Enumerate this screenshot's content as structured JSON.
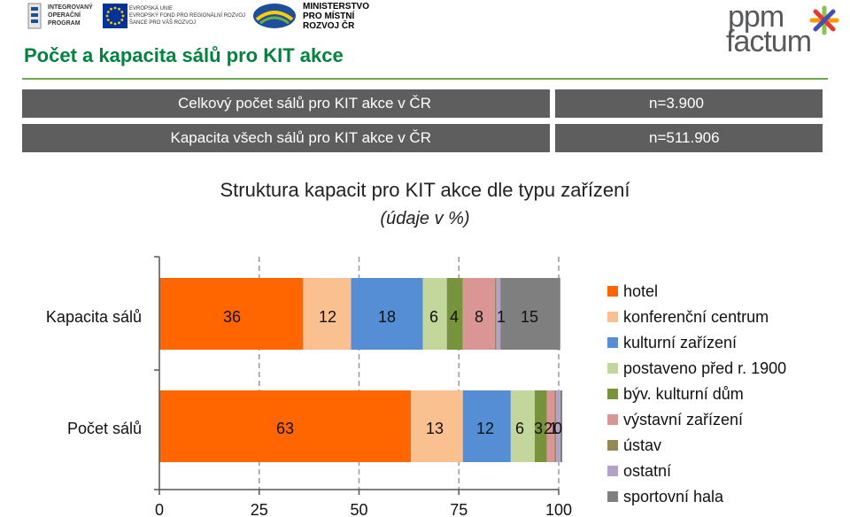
{
  "logos": {
    "iop_text": [
      "INTEGROVANÝ",
      "OPERAČNÍ",
      "PROGRAM"
    ],
    "eu_text": [
      "EVROPSKÁ UNIE",
      "EVROPSKÝ FOND PRO REGIONÁLNÍ ROZVOJ",
      "ŠANCE PRO VÁŠ ROZVOJ"
    ],
    "mmr_text": [
      "MINISTERSTVO",
      "PRO MÍSTNÍ",
      "ROZVOJ ČR"
    ],
    "ppm_line1": "ppm",
    "ppm_line2": "factum"
  },
  "page_title": "Počet a kapacita sálů pro KIT akce",
  "stats": [
    {
      "label": "Celkový počet sálů pro KIT akce v ČR",
      "value": "n=3.900"
    },
    {
      "label": "Kapacita všech sálů pro KIT akce v ČR",
      "value": "n=511.906"
    }
  ],
  "colors": {
    "title_green": "#00843d",
    "stat_bar": "#5e5e5e"
  },
  "chart_data": {
    "type": "bar",
    "orientation": "horizontal",
    "stacked": true,
    "title": "Struktura kapacit  pro KIT akce dle typu zařízení",
    "subtitle": "(údaje v %)",
    "categories": [
      "Kapacita  sálů",
      "Počet sálů"
    ],
    "series": [
      {
        "name": "hotel",
        "color": "#ff6600",
        "values": [
          36,
          63
        ]
      },
      {
        "name": "konferenční centrum",
        "color": "#fac090",
        "values": [
          12,
          13
        ]
      },
      {
        "name": "kulturní zařízení",
        "color": "#558ed5",
        "values": [
          18,
          12
        ]
      },
      {
        "name": "postaveno před r. 1900",
        "color": "#c3d69b",
        "values": [
          6,
          6
        ]
      },
      {
        "name": "býv. kulturní dům",
        "color": "#77933c",
        "values": [
          4,
          3
        ]
      },
      {
        "name": "výstavní zařízení",
        "color": "#d99694",
        "values": [
          8,
          2
        ]
      },
      {
        "name": "ústav",
        "color": "#948a54",
        "values": [
          0.4,
          0.4
        ]
      },
      {
        "name": "ostatní",
        "color": "#b3a2c7",
        "values": [
          1,
          1
        ]
      },
      {
        "name": "sportovní hala",
        "color": "#7f7f7f",
        "values": [
          15,
          0.5
        ]
      }
    ],
    "data_labels": [
      [
        "36",
        "12",
        "18",
        "6",
        "4",
        "8",
        "",
        "1",
        "15"
      ],
      [
        "63",
        "13",
        "12",
        "6",
        "3",
        "2",
        "",
        "1",
        "0"
      ]
    ],
    "xlim": [
      0,
      100
    ],
    "xticks": [
      0,
      25,
      50,
      75,
      100
    ],
    "grid": "vertical dashed",
    "legend": "right"
  }
}
